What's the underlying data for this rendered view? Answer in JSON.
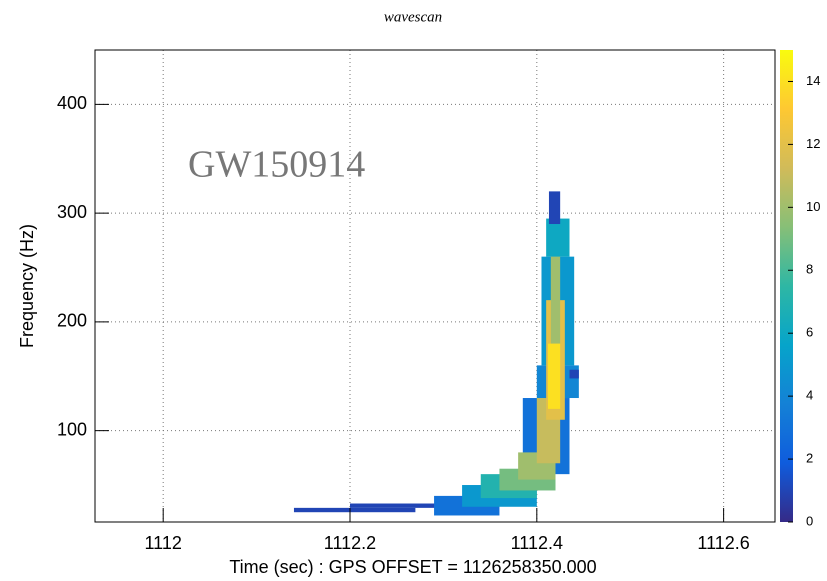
{
  "chart_data": {
    "type": "heatmap",
    "title": "wavescan",
    "annotation": "GW150914",
    "x_label": "Time (sec) : GPS OFFSET = 1126258350.000",
    "y_label": "Frequency (Hz)",
    "xlim": [
      1111.927,
      1112.655
    ],
    "xticks": [
      1112,
      1112.2,
      1112.4,
      1112.6
    ],
    "ylim": [
      16,
      450
    ],
    "yticks": [
      100,
      200,
      300,
      400
    ],
    "zlim": [
      0,
      15
    ],
    "zticks": [
      0,
      2,
      4,
      6,
      8,
      10,
      12,
      14
    ],
    "grid": true,
    "colorscale": [
      "#352a87",
      "#0f5cdd",
      "#1481d6",
      "#06a4ca",
      "#2eb7a4",
      "#87bf77",
      "#d1bb59",
      "#fec832",
      "#f9fb0e"
    ],
    "cells": [
      {
        "x": [
          1112.14,
          1112.27
        ],
        "y": [
          25,
          29
        ],
        "value": 1
      },
      {
        "x": [
          1112.2,
          1112.3
        ],
        "y": [
          29,
          33
        ],
        "value": 1
      },
      {
        "x": [
          1112.29,
          1112.36
        ],
        "y": [
          22,
          40
        ],
        "value": 3
      },
      {
        "x": [
          1112.32,
          1112.4
        ],
        "y": [
          30,
          50
        ],
        "value": 5
      },
      {
        "x": [
          1112.385,
          1112.435
        ],
        "y": [
          60,
          130
        ],
        "value": 3
      },
      {
        "x": [
          1112.4,
          1112.445
        ],
        "y": [
          130,
          160
        ],
        "value": 4
      },
      {
        "x": [
          1112.405,
          1112.44
        ],
        "y": [
          160,
          260
        ],
        "value": 5
      },
      {
        "x": [
          1112.41,
          1112.435
        ],
        "y": [
          260,
          295
        ],
        "value": 6
      },
      {
        "x": [
          1112.413,
          1112.425
        ],
        "y": [
          290,
          320
        ],
        "value": 1
      },
      {
        "x": [
          1112.435,
          1112.445
        ],
        "y": [
          148,
          156
        ],
        "value": 1
      },
      {
        "x": [
          1112.34,
          1112.4
        ],
        "y": [
          38,
          60
        ],
        "value": 7
      },
      {
        "x": [
          1112.36,
          1112.42
        ],
        "y": [
          45,
          65
        ],
        "value": 9
      },
      {
        "x": [
          1112.38,
          1112.42
        ],
        "y": [
          55,
          80
        ],
        "value": 10
      },
      {
        "x": [
          1112.4,
          1112.425
        ],
        "y": [
          70,
          130
        ],
        "value": 11
      },
      {
        "x": [
          1112.41,
          1112.43
        ],
        "y": [
          110,
          220
        ],
        "value": 12
      },
      {
        "x": [
          1112.415,
          1112.425
        ],
        "y": [
          180,
          260
        ],
        "value": 10
      },
      {
        "x": [
          1112.412,
          1112.425
        ],
        "y": [
          120,
          180
        ],
        "value": 14
      }
    ]
  }
}
